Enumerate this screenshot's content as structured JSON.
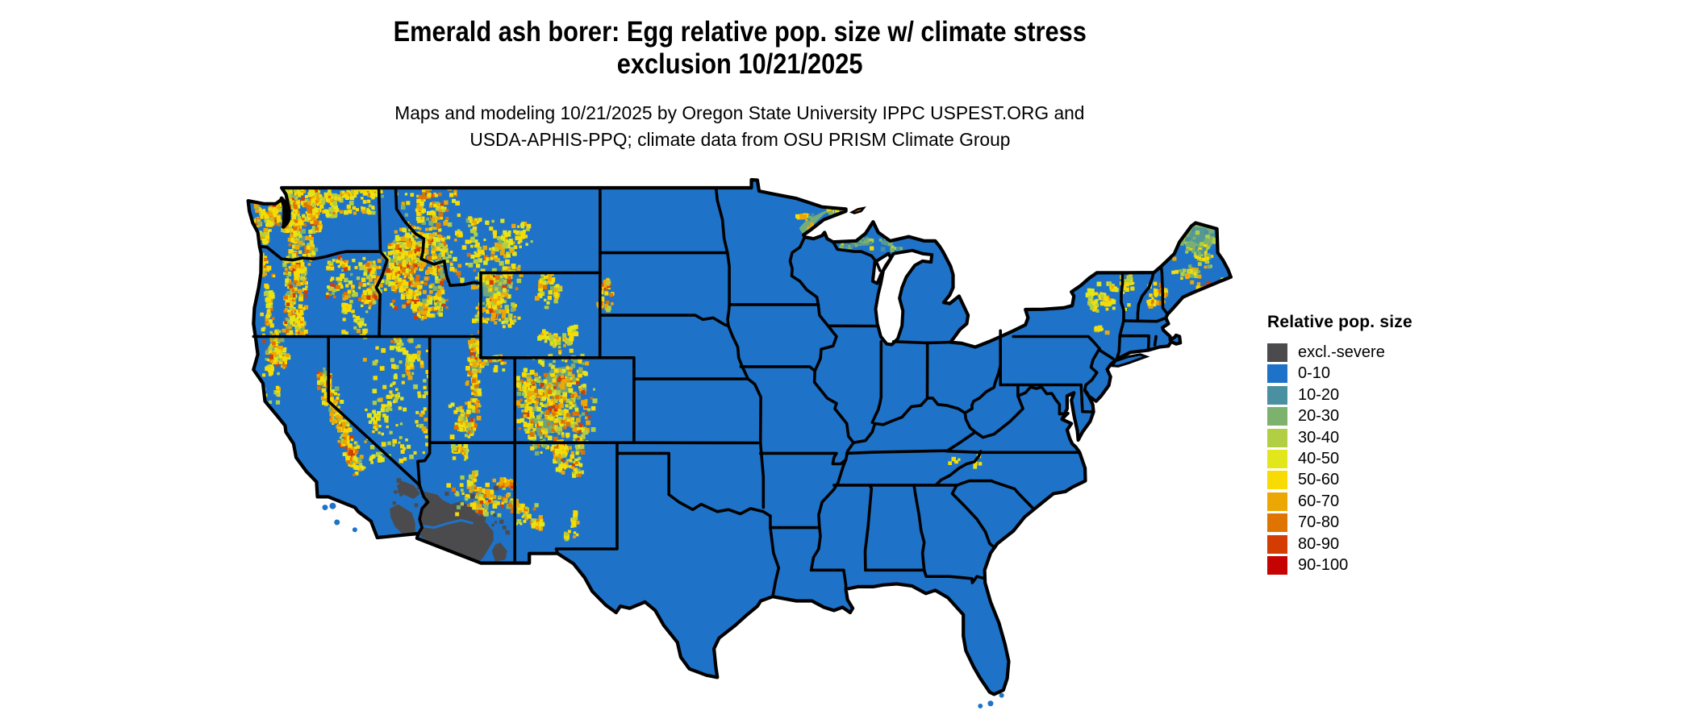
{
  "title": {
    "line1": "Emerald ash borer: Egg relative pop. size w/ climate stress",
    "line2": "exclusion 10/21/2025"
  },
  "subtitle": {
    "line1": "Maps and modeling 10/21/2025 by Oregon State University IPPC USPEST.ORG and",
    "line2": "USDA-APHIS-PPQ; climate data from OSU PRISM Climate Group"
  },
  "legend": {
    "title": "Relative pop. size",
    "entries": [
      {
        "label": "excl.-severe",
        "color": "#4b4b4d"
      },
      {
        "label": "0-10",
        "color": "#1e73c8"
      },
      {
        "label": "10-20",
        "color": "#4a90a0"
      },
      {
        "label": "20-30",
        "color": "#7db26e"
      },
      {
        "label": "30-40",
        "color": "#b2cf44"
      },
      {
        "label": "40-50",
        "color": "#e2e71c"
      },
      {
        "label": "50-60",
        "color": "#f7db02"
      },
      {
        "label": "60-70",
        "color": "#eda705"
      },
      {
        "label": "70-80",
        "color": "#e07401"
      },
      {
        "label": "80-90",
        "color": "#d33d03"
      },
      {
        "label": "90-100",
        "color": "#c60303"
      }
    ]
  },
  "map": {
    "border_color": "#000000",
    "water_color": "#ffffff"
  }
}
